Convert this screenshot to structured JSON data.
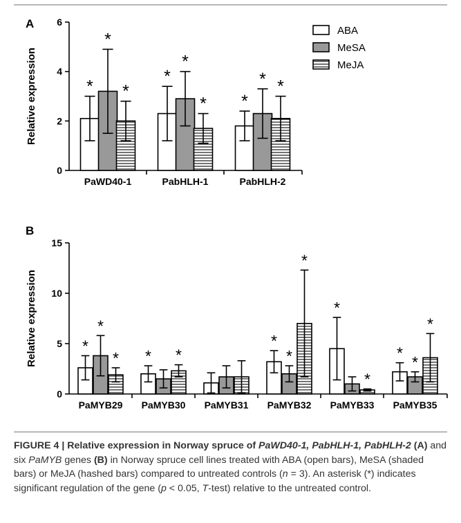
{
  "colors": {
    "ABA": "#ffffff",
    "MeSA": "#999999",
    "MeJA_hatch": "#000000",
    "divider": "#b8b8b8"
  },
  "legend": [
    {
      "name": "ABA",
      "pattern": "open"
    },
    {
      "name": "MeSA",
      "pattern": "shaded"
    },
    {
      "name": "MeJA",
      "pattern": "hashed"
    }
  ],
  "chart_data": [
    {
      "panel": "A",
      "type": "bar",
      "ylabel": "Relative expression",
      "ylim": [
        0,
        6
      ],
      "yticks": [
        0,
        2,
        4,
        6
      ],
      "categories": [
        "PaWD40-1",
        "PabHLH-1",
        "PabHLH-2"
      ],
      "series": [
        {
          "name": "ABA",
          "values": [
            2.1,
            2.3,
            1.8
          ],
          "errors": [
            0.9,
            1.1,
            0.6
          ],
          "significant": [
            true,
            true,
            true
          ]
        },
        {
          "name": "MeSA",
          "values": [
            3.2,
            2.9,
            2.3
          ],
          "errors": [
            1.7,
            1.1,
            1.0
          ],
          "significant": [
            true,
            true,
            true
          ]
        },
        {
          "name": "MeJA",
          "values": [
            2.0,
            1.7,
            2.1
          ],
          "errors": [
            0.8,
            0.6,
            0.9
          ],
          "significant": [
            true,
            true,
            true
          ]
        }
      ],
      "significance_marker": "*"
    },
    {
      "panel": "B",
      "type": "bar",
      "ylabel": "Relative expression",
      "ylim": [
        0,
        15
      ],
      "yticks": [
        0,
        5,
        10,
        15
      ],
      "categories": [
        "PaMYB29",
        "PaMYB30",
        "PaMYB31",
        "PaMYB32",
        "PaMYB33",
        "PaMYB35"
      ],
      "series": [
        {
          "name": "ABA",
          "values": [
            2.6,
            2.0,
            1.1,
            3.2,
            4.5,
            2.2
          ],
          "errors": [
            1.2,
            0.8,
            1.0,
            1.1,
            3.1,
            0.9
          ],
          "significant": [
            true,
            true,
            false,
            true,
            true,
            true
          ]
        },
        {
          "name": "MeSA",
          "values": [
            3.8,
            1.5,
            1.7,
            2.0,
            1.0,
            1.7
          ],
          "errors": [
            2.0,
            0.9,
            1.1,
            0.8,
            0.7,
            0.5
          ],
          "significant": [
            true,
            false,
            false,
            true,
            false,
            true
          ]
        },
        {
          "name": "MeJA",
          "values": [
            1.9,
            2.3,
            1.7,
            7.0,
            0.4,
            3.6
          ],
          "errors": [
            0.7,
            0.6,
            1.6,
            5.3,
            0.1,
            2.4
          ],
          "significant": [
            true,
            true,
            false,
            true,
            true,
            true
          ]
        }
      ],
      "significance_marker": "*"
    }
  ],
  "caption": {
    "figure_label": "FIGURE 4 | Relative expression in Norway spruce of ",
    "genes_italic": "PaWD40-1, PabHLH-1, PabHLH-2",
    "panel_a_ref": " (A)",
    "text_and_six": " and six ",
    "pamyb_italic": "PaMYB",
    "text_genes": " genes ",
    "panel_b_ref": "(B)",
    "text_rest_1": " in Norway spruce cell lines treated with ABA (open bars), MeSA (shaded bars) or MeJA (hashed bars) compared to untreated controls (",
    "n_italic": "n",
    "text_n_value": " = 3). An asterisk (*) indicates significant regulation of the gene (",
    "p_italic": "p",
    "text_p_value": " < 0.05, ",
    "t_italic": "T",
    "text_rest_2": "-test) relative to the untreated control."
  }
}
